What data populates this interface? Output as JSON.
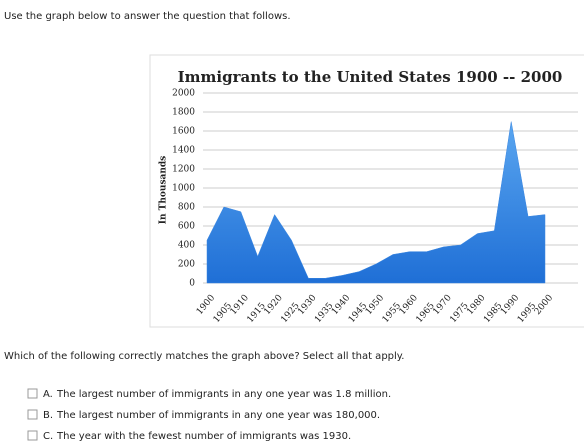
{
  "header": "Use the graph below to answer the question that follows.",
  "chart_data": {
    "type": "area",
    "title": "Immigrants to the United States 1900 -- 2000",
    "ylabel": "In Thousands",
    "categories": [
      "1900",
      "1905",
      "1910",
      "1915",
      "1920",
      "1925",
      "1930",
      "1935",
      "1940",
      "1945",
      "1950",
      "1955",
      "1960",
      "1965",
      "1970",
      "1975",
      "1980",
      "1985",
      "1990",
      "1995",
      "2000"
    ],
    "values": [
      450,
      800,
      750,
      280,
      720,
      450,
      50,
      50,
      80,
      120,
      200,
      300,
      330,
      330,
      380,
      400,
      520,
      550,
      1700,
      700,
      720
    ],
    "color": "#3a86e0",
    "ylim": [
      0,
      2000
    ],
    "yticks": [
      0,
      200,
      400,
      600,
      800,
      1000,
      1200,
      1400,
      1600,
      1800,
      2000
    ],
    "grid": true
  },
  "question": "Which of the following correctly matches the graph above? Select all that apply.",
  "options": [
    {
      "letter": "A.",
      "text": "The largest number of immigrants in any one year was 1.8 million."
    },
    {
      "letter": "B.",
      "text": "The largest number of immigrants in any one year was 180,000."
    },
    {
      "letter": "C.",
      "text": "The year with the fewest number of immigrants was 1930."
    }
  ]
}
